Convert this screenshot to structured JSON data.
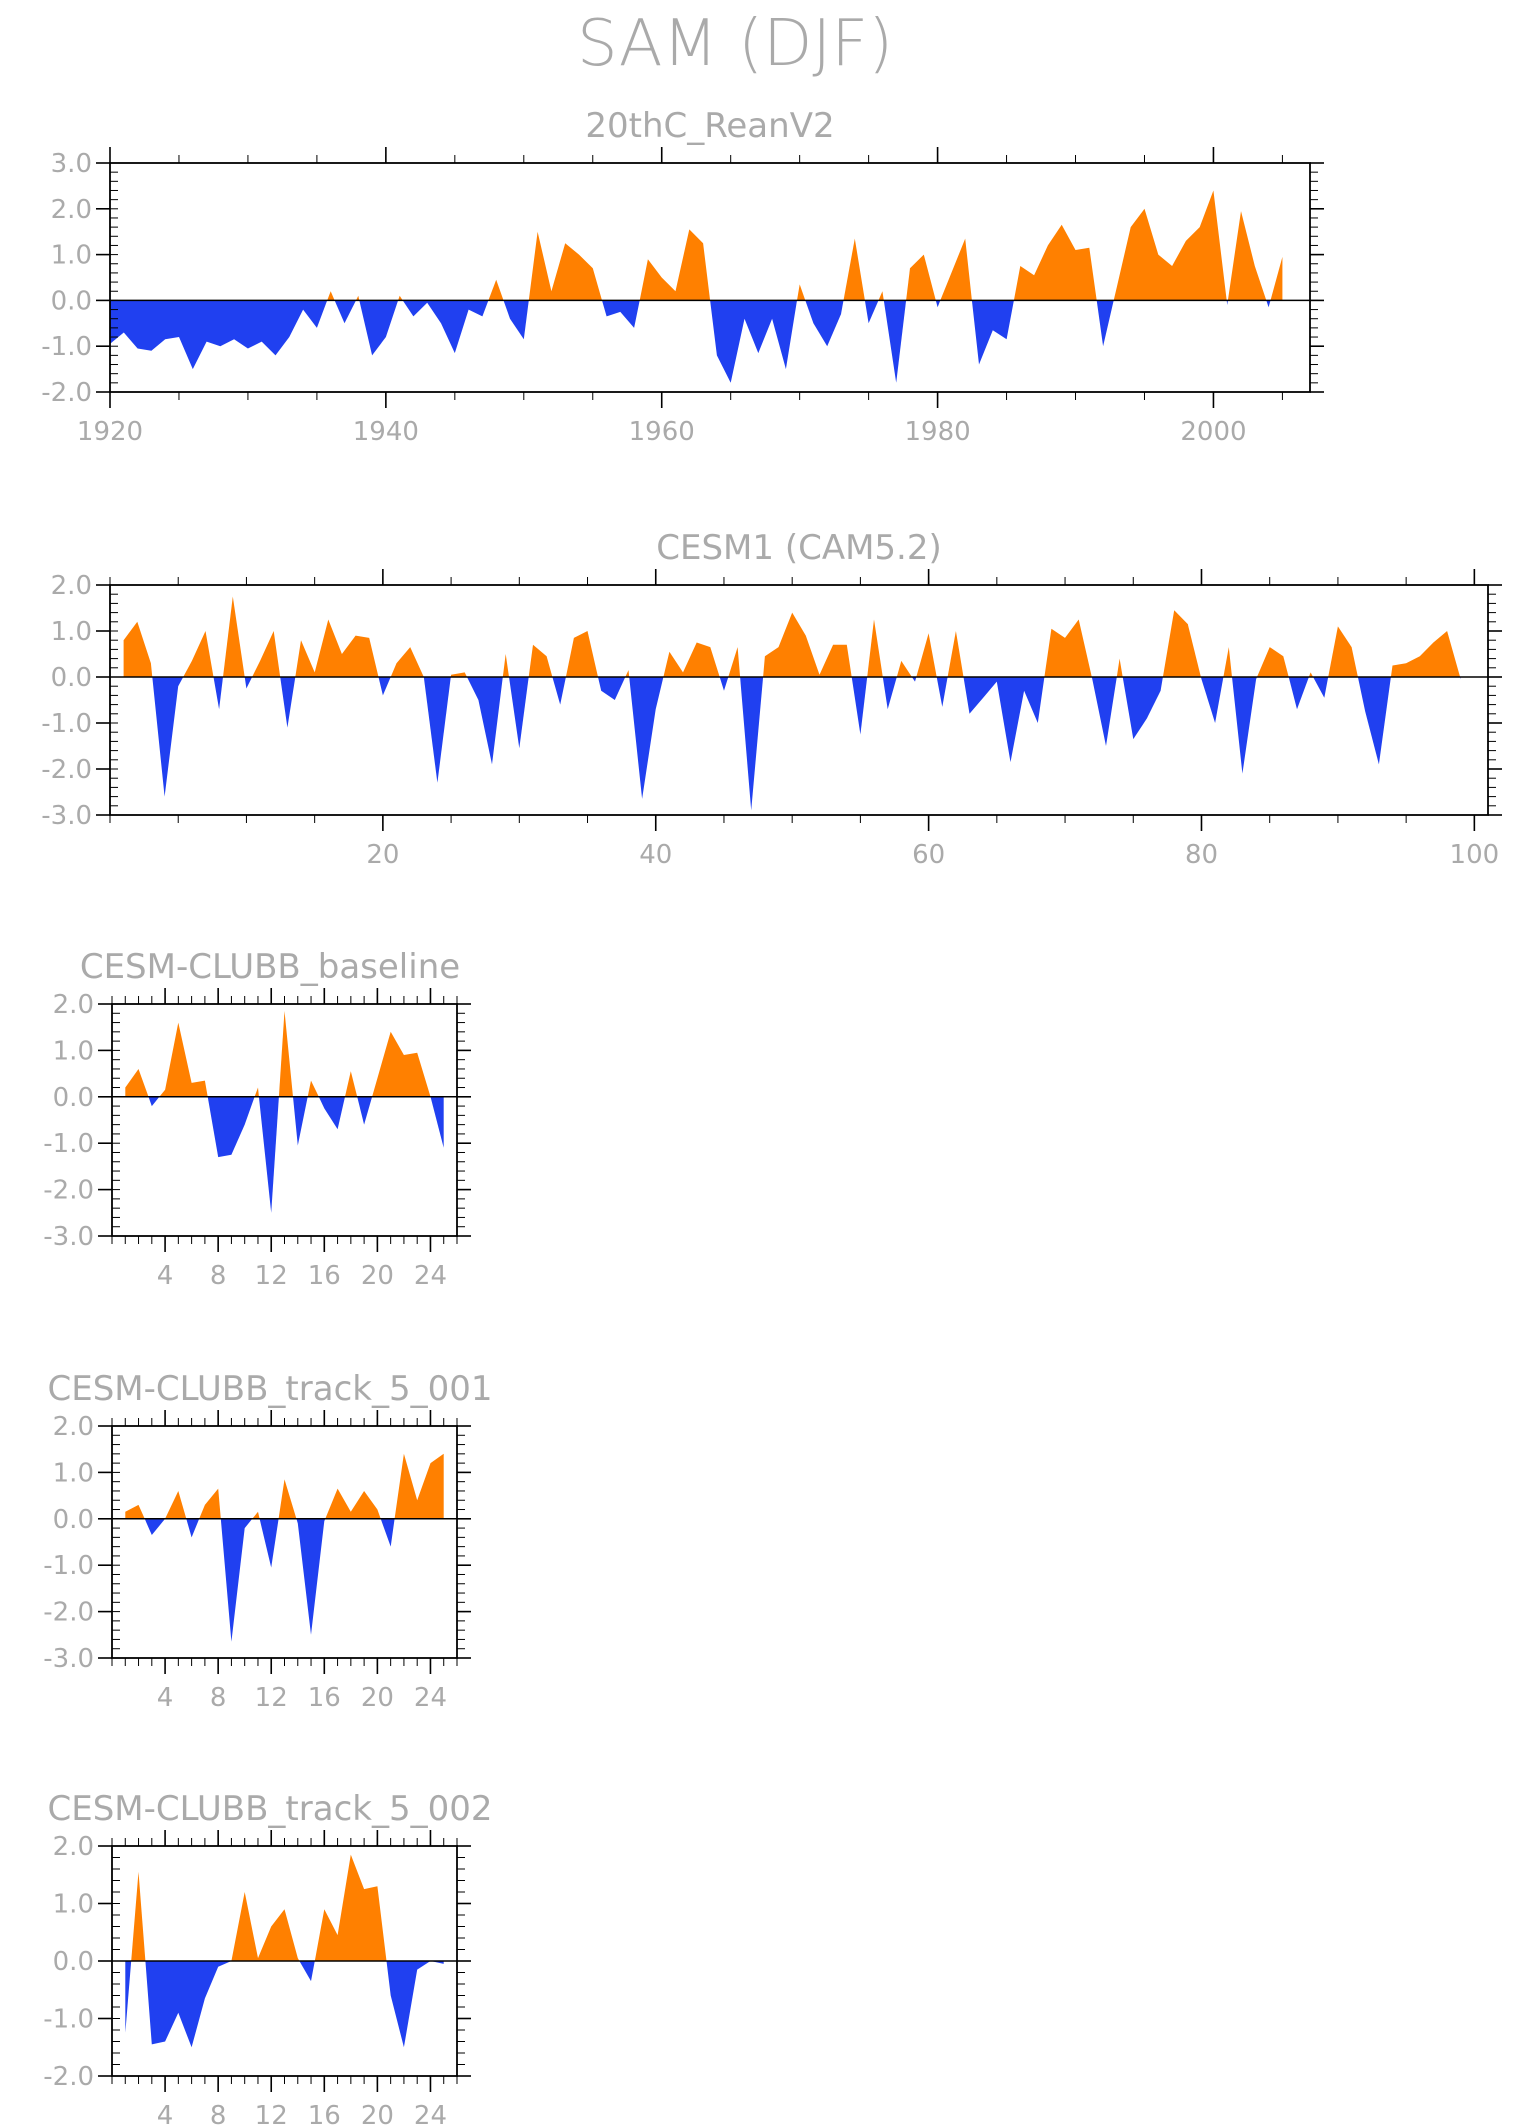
{
  "title": "SAM (DJF)",
  "colors": {
    "positive": "#ff8000",
    "negative": "#2040f0",
    "text": "#aaaaaa",
    "frame": "#000000"
  },
  "chart_data": [
    {
      "type": "area",
      "title": "20thC_ReanV2",
      "ylim": [
        -2.0,
        3.0
      ],
      "yticks": [
        "3.0",
        "2.0",
        "1.0",
        "0.0",
        "-1.0",
        "-2.0"
      ],
      "ytick_values": [
        3,
        2,
        1,
        0,
        -1,
        -2
      ],
      "xlim": [
        1920,
        2007
      ],
      "xticks": [
        "1920",
        "1940",
        "1960",
        "1980",
        "2000"
      ],
      "xtick_values": [
        1920,
        1940,
        1960,
        1980,
        2000
      ],
      "x_start": 1920,
      "values": [
        -0.95,
        -0.7,
        -1.05,
        -1.1,
        -0.85,
        -0.8,
        -1.5,
        -0.9,
        -1.0,
        -0.85,
        -1.05,
        -0.9,
        -1.2,
        -0.8,
        -0.2,
        -0.6,
        0.2,
        -0.5,
        0.1,
        -1.2,
        -0.8,
        0.1,
        -0.35,
        -0.05,
        -0.5,
        -1.15,
        -0.2,
        -0.35,
        0.45,
        -0.4,
        -0.85,
        1.5,
        0.2,
        1.25,
        1.0,
        0.7,
        -0.35,
        -0.25,
        -0.6,
        0.9,
        0.5,
        0.2,
        1.55,
        1.25,
        -1.2,
        -1.8,
        -0.4,
        -1.15,
        -0.4,
        -1.5,
        0.35,
        -0.5,
        -1.0,
        -0.3,
        1.35,
        -0.5,
        0.2,
        -1.8,
        0.7,
        1.0,
        -0.15,
        0.6,
        1.35,
        -1.4,
        -0.65,
        -0.85,
        0.75,
        0.55,
        1.2,
        1.65,
        1.1,
        1.15,
        -1.0,
        0.3,
        1.6,
        2.0,
        1.0,
        0.75,
        1.3,
        1.6,
        2.4,
        -0.1,
        1.95,
        0.75,
        -0.15,
        0.95
      ]
    },
    {
      "type": "area",
      "title": "CESM1 (CAM5.2)",
      "ylim": [
        -3.0,
        2.0
      ],
      "yticks": [
        "2.0",
        "1.0",
        "0.0",
        "-1.0",
        "-2.0",
        "-3.0"
      ],
      "ytick_values": [
        2,
        1,
        0,
        -1,
        -2,
        -3
      ],
      "xlim": [
        0,
        101
      ],
      "xticks": [
        "20",
        "40",
        "60",
        "80",
        "100"
      ],
      "xtick_values": [
        20,
        40,
        60,
        80,
        100
      ],
      "x_start": 1,
      "values": [
        0.8,
        1.2,
        0.3,
        -2.6,
        -0.2,
        0.35,
        1.0,
        -0.7,
        1.75,
        -0.25,
        0.35,
        1.0,
        -1.1,
        0.8,
        0.1,
        1.25,
        0.5,
        0.9,
        0.85,
        -0.4,
        0.3,
        0.65,
        0.0,
        -2.3,
        0.05,
        0.1,
        -0.5,
        -1.9,
        0.5,
        -1.55,
        0.7,
        0.45,
        -0.6,
        0.85,
        1.0,
        -0.3,
        -0.5,
        0.15,
        -2.65,
        -0.7,
        0.55,
        0.1,
        0.75,
        0.65,
        -0.3,
        0.65,
        -2.9,
        0.45,
        0.65,
        1.4,
        0.9,
        0.05,
        0.7,
        0.7,
        -1.25,
        1.25,
        -0.7,
        0.35,
        -0.1,
        0.95,
        -0.65,
        1.0,
        -0.8,
        -0.45,
        -0.1,
        -1.85,
        -0.3,
        -1.0,
        1.05,
        0.85,
        1.25,
        -0.05,
        -1.5,
        0.4,
        -1.35,
        -0.9,
        -0.3,
        1.45,
        1.15,
        -0.05,
        -1.0,
        0.65,
        -2.1,
        -0.05,
        0.65,
        0.45,
        -0.7,
        0.1,
        -0.45,
        1.1,
        0.65,
        -0.75,
        -1.9,
        0.25,
        0.3,
        0.45,
        0.75,
        1.0,
        -0.05
      ]
    },
    {
      "type": "area",
      "title": "CESM-CLUBB_baseline",
      "ylim": [
        -3.0,
        2.0
      ],
      "yticks": [
        "2.0",
        "1.0",
        "0.0",
        "-1.0",
        "-2.0",
        "-3.0"
      ],
      "ytick_values": [
        2,
        1,
        0,
        -1,
        -2,
        -3
      ],
      "xlim": [
        0,
        26
      ],
      "xticks": [
        "4",
        "8",
        "12",
        "16",
        "20",
        "24"
      ],
      "xtick_values": [
        4,
        8,
        12,
        16,
        20,
        24
      ],
      "x_start": 1,
      "values": [
        0.2,
        0.6,
        -0.2,
        0.15,
        1.6,
        0.3,
        0.35,
        -1.3,
        -1.25,
        -0.6,
        0.2,
        -2.5,
        1.85,
        -1.05,
        0.35,
        -0.25,
        -0.7,
        0.55,
        -0.6,
        0.4,
        1.4,
        0.9,
        0.95,
        0.0,
        -1.1
      ]
    },
    {
      "type": "area",
      "title": "CESM-CLUBB_track_5_001",
      "ylim": [
        -3.0,
        2.0
      ],
      "yticks": [
        "2.0",
        "1.0",
        "0.0",
        "-1.0",
        "-2.0",
        "-3.0"
      ],
      "ytick_values": [
        2,
        1,
        0,
        -1,
        -2,
        -3
      ],
      "xlim": [
        0,
        26
      ],
      "xticks": [
        "4",
        "8",
        "12",
        "16",
        "20",
        "24"
      ],
      "xtick_values": [
        4,
        8,
        12,
        16,
        20,
        24
      ],
      "x_start": 1,
      "values": [
        0.15,
        0.3,
        -0.35,
        0.0,
        0.6,
        -0.4,
        0.3,
        0.65,
        -2.65,
        -0.2,
        0.15,
        -1.05,
        0.85,
        -0.1,
        -2.5,
        -0.05,
        0.65,
        0.15,
        0.6,
        0.2,
        -0.6,
        1.4,
        0.4,
        1.2,
        1.4
      ]
    },
    {
      "type": "area",
      "title": "CESM-CLUBB_track_5_002",
      "ylim": [
        -2.0,
        2.0
      ],
      "yticks": [
        "2.0",
        "1.0",
        "0.0",
        "-1.0",
        "-2.0"
      ],
      "ytick_values": [
        2,
        1,
        0,
        -1,
        -2
      ],
      "xlim": [
        0,
        26
      ],
      "xticks": [
        "4",
        "8",
        "12",
        "16",
        "20",
        "24"
      ],
      "xtick_values": [
        4,
        8,
        12,
        16,
        20,
        24
      ],
      "x_start": 1,
      "values": [
        -1.25,
        1.55,
        -1.45,
        -1.4,
        -0.9,
        -1.5,
        -0.65,
        -0.1,
        0.0,
        1.2,
        0.05,
        0.6,
        0.9,
        0.05,
        -0.35,
        0.9,
        0.45,
        1.85,
        1.25,
        1.3,
        -0.6,
        -1.5,
        -0.15,
        0.0,
        -0.05
      ]
    }
  ]
}
